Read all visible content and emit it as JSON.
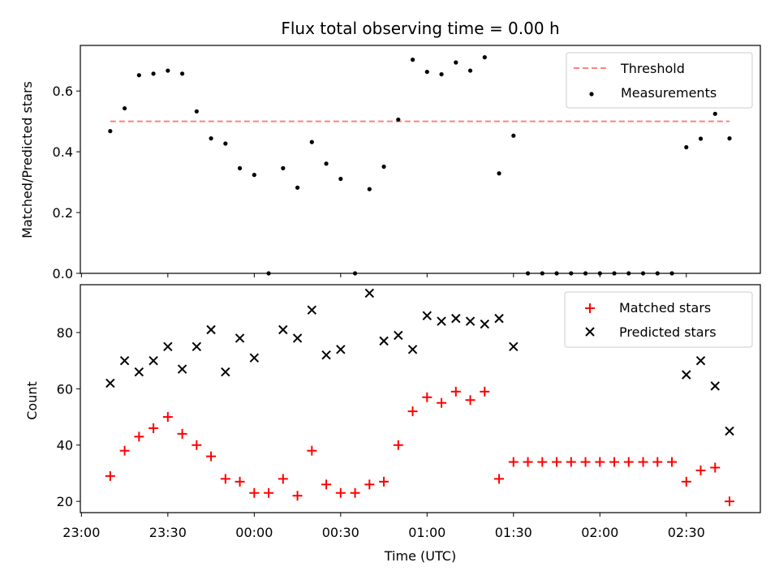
{
  "figure": {
    "title": "Flux total observing time = 0.00 h"
  },
  "chart_data": [
    {
      "type": "scatter",
      "panel": "top",
      "ylabel": "Matched/Predicted stars",
      "xlabel": "",
      "ylim": [
        0,
        0.75
      ],
      "yticks": [
        0.0,
        0.2,
        0.4,
        0.6
      ],
      "ytick_labels": [
        "0.0",
        "0.2",
        "0.4",
        "0.6"
      ],
      "legend_position": "top-right",
      "threshold": {
        "name": "Threshold",
        "value": 0.5,
        "x_start": "23:10",
        "x_end": "02:45",
        "color": "#ff8080",
        "style": "dashed"
      },
      "series": [
        {
          "name": "Measurements",
          "color": "#000000",
          "marker": "dot",
          "x": [
            "23:10",
            "23:15",
            "23:20",
            "23:25",
            "23:30",
            "23:35",
            "23:40",
            "23:45",
            "23:50",
            "23:55",
            "00:00",
            "00:05",
            "00:10",
            "00:15",
            "00:20",
            "00:25",
            "00:30",
            "00:35",
            "00:40",
            "00:45",
            "00:50",
            "00:55",
            "01:00",
            "01:05",
            "01:10",
            "01:15",
            "01:20",
            "01:25",
            "01:30",
            "01:35",
            "01:40",
            "01:45",
            "01:50",
            "01:55",
            "02:00",
            "02:05",
            "02:10",
            "02:15",
            "02:20",
            "02:25",
            "02:30",
            "02:35",
            "02:40",
            "02:45"
          ],
          "y": [
            0.468,
            0.543,
            0.652,
            0.657,
            0.667,
            0.657,
            0.533,
            0.444,
            0.427,
            0.346,
            0.324,
            0.0,
            0.346,
            0.282,
            0.432,
            0.361,
            0.311,
            0.0,
            0.277,
            0.351,
            0.506,
            0.703,
            0.663,
            0.655,
            0.694,
            0.667,
            0.711,
            0.329,
            0.453,
            0.0,
            0.0,
            0.0,
            0.0,
            0.0,
            0.0,
            0.0,
            0.0,
            0.0,
            0.0,
            0.0,
            0.415,
            0.443,
            0.525,
            0.444
          ]
        }
      ]
    },
    {
      "type": "scatter",
      "panel": "bottom",
      "ylabel": "Count",
      "xlabel": "Time (UTC)",
      "ylim": [
        16,
        97
      ],
      "yticks": [
        20,
        40,
        60,
        80
      ],
      "ytick_labels": [
        "20",
        "40",
        "60",
        "80"
      ],
      "xticks": [
        "23:00",
        "23:30",
        "00:00",
        "00:30",
        "01:00",
        "01:30",
        "02:00",
        "02:30"
      ],
      "legend_position": "top-right",
      "series": [
        {
          "name": "Matched stars",
          "color": "#ff0000",
          "marker": "plus",
          "x": [
            "23:10",
            "23:15",
            "23:20",
            "23:25",
            "23:30",
            "23:35",
            "23:40",
            "23:45",
            "23:50",
            "23:55",
            "00:00",
            "00:05",
            "00:10",
            "00:15",
            "00:20",
            "00:25",
            "00:30",
            "00:35",
            "00:40",
            "00:45",
            "00:50",
            "00:55",
            "01:00",
            "01:05",
            "01:10",
            "01:15",
            "01:20",
            "01:25",
            "01:30",
            "01:35",
            "01:40",
            "01:45",
            "01:50",
            "01:55",
            "02:00",
            "02:05",
            "02:10",
            "02:15",
            "02:20",
            "02:25",
            "02:30",
            "02:35",
            "02:40",
            "02:45"
          ],
          "y": [
            29,
            38,
            43,
            46,
            50,
            44,
            40,
            36,
            28,
            27,
            23,
            23,
            28,
            22,
            38,
            26,
            23,
            23,
            26,
            27,
            40,
            52,
            57,
            55,
            59,
            56,
            59,
            28,
            34,
            34,
            34,
            34,
            34,
            34,
            34,
            34,
            34,
            34,
            34,
            34,
            27,
            31,
            32,
            20
          ]
        },
        {
          "name": "Predicted stars",
          "color": "#000000",
          "marker": "x",
          "x": [
            "23:10",
            "23:15",
            "23:20",
            "23:25",
            "23:30",
            "23:35",
            "23:40",
            "23:45",
            "23:50",
            "23:55",
            "00:00",
            "00:10",
            "00:15",
            "00:20",
            "00:25",
            "00:30",
            "00:40",
            "00:45",
            "00:50",
            "00:55",
            "01:00",
            "01:05",
            "01:10",
            "01:15",
            "01:20",
            "01:25",
            "01:30",
            "02:30",
            "02:35",
            "02:40",
            "02:45"
          ],
          "y": [
            62,
            70,
            66,
            70,
            75,
            67,
            75,
            81,
            66,
            78,
            71,
            81,
            78,
            88,
            72,
            74,
            94,
            77,
            79,
            74,
            86,
            84,
            85,
            84,
            83,
            85,
            75,
            65,
            70,
            61,
            45
          ]
        }
      ]
    }
  ]
}
